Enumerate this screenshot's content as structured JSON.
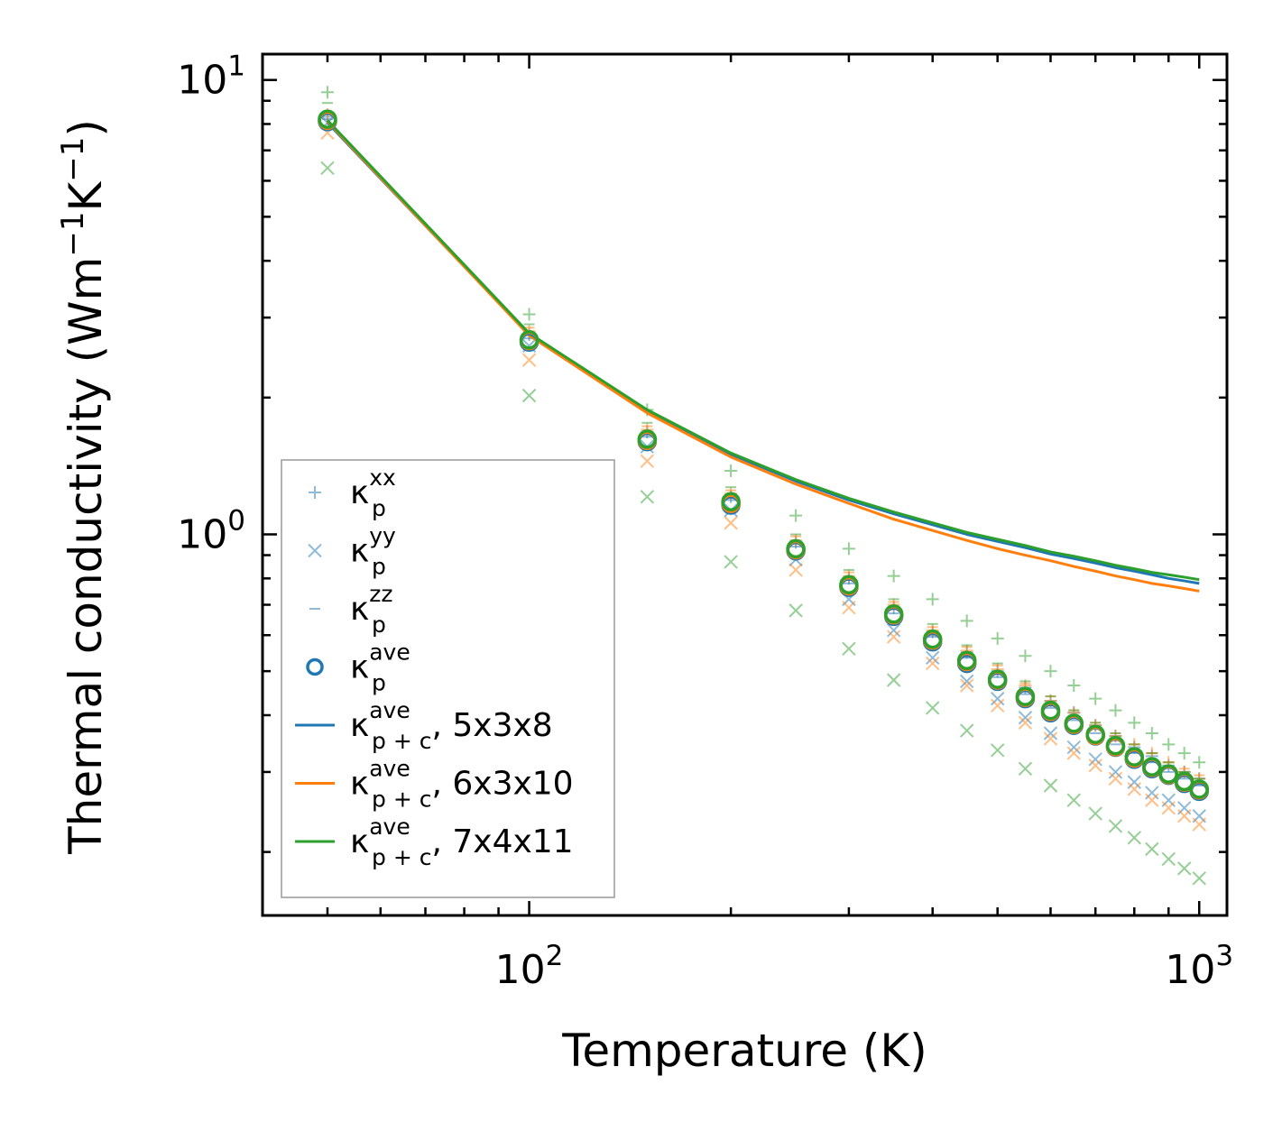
{
  "chart_data": {
    "type": "scatter",
    "scale": "log-log",
    "xlabel": "Temperature (K)",
    "ylabel": {
      "main": "Thermal conductivity (Wm",
      "exp1": "−1",
      "mid": "K",
      "exp2": "−1",
      "tail": ")"
    },
    "xlim": [
      40,
      1100
    ],
    "ylim": [
      0.145,
      11.4
    ],
    "xticks": [
      {
        "value": 100,
        "base": "10",
        "exp": "2"
      },
      {
        "value": 1000,
        "base": "10",
        "exp": "3"
      }
    ],
    "yticks": [
      {
        "value": 1,
        "base": "10",
        "exp": "0"
      },
      {
        "value": 10,
        "base": "10",
        "exp": "1"
      }
    ],
    "grid": false,
    "legend_position": "lower-left",
    "colors": {
      "blue": "#1f77b4",
      "orange": "#ff7f0e",
      "green": "#2ca02c"
    },
    "temperatures": [
      50,
      100,
      150,
      200,
      250,
      300,
      350,
      400,
      450,
      500,
      550,
      600,
      650,
      700,
      750,
      800,
      850,
      900,
      950,
      1000
    ],
    "scatter_series": [
      {
        "name": "5x3x8",
        "color": "#1f77b4",
        "kxx": [
          8.3,
          2.75,
          1.68,
          1.21,
          0.96,
          0.8,
          0.69,
          0.61,
          0.55,
          0.5,
          0.46,
          0.43,
          0.405,
          0.38,
          0.36,
          0.34,
          0.325,
          0.31,
          0.3,
          0.29
        ],
        "kyy": [
          8.05,
          2.6,
          1.56,
          1.13,
          0.88,
          0.72,
          0.615,
          0.535,
          0.475,
          0.435,
          0.395,
          0.365,
          0.34,
          0.32,
          0.3,
          0.285,
          0.27,
          0.26,
          0.25,
          0.24
        ],
        "kzz": [
          8.2,
          2.7,
          1.64,
          1.19,
          0.94,
          0.78,
          0.67,
          0.595,
          0.535,
          0.485,
          0.445,
          0.415,
          0.39,
          0.365,
          0.345,
          0.33,
          0.315,
          0.3,
          0.29,
          0.28
        ],
        "kave": [
          8.1,
          2.65,
          1.6,
          1.16,
          0.92,
          0.765,
          0.66,
          0.58,
          0.52,
          0.475,
          0.435,
          0.405,
          0.38,
          0.36,
          0.34,
          0.32,
          0.305,
          0.295,
          0.283,
          0.272
        ]
      },
      {
        "name": "6x3x10",
        "color": "#ff7f0e",
        "kxx": [
          8.4,
          2.8,
          1.7,
          1.23,
          0.97,
          0.81,
          0.7,
          0.615,
          0.555,
          0.505,
          0.465,
          0.43,
          0.405,
          0.38,
          0.36,
          0.345,
          0.33,
          0.315,
          0.3,
          0.29
        ],
        "kyy": [
          7.65,
          2.42,
          1.45,
          1.06,
          0.835,
          0.69,
          0.595,
          0.52,
          0.465,
          0.42,
          0.385,
          0.355,
          0.33,
          0.31,
          0.29,
          0.275,
          0.26,
          0.25,
          0.24,
          0.23
        ],
        "kzz": [
          8.5,
          2.85,
          1.73,
          1.25,
          0.99,
          0.825,
          0.71,
          0.625,
          0.565,
          0.515,
          0.47,
          0.44,
          0.41,
          0.385,
          0.365,
          0.345,
          0.33,
          0.315,
          0.305,
          0.295
        ],
        "kave": [
          8.15,
          2.67,
          1.61,
          1.17,
          0.925,
          0.77,
          0.665,
          0.585,
          0.525,
          0.478,
          0.438,
          0.408,
          0.382,
          0.361,
          0.341,
          0.322,
          0.307,
          0.296,
          0.285,
          0.274
        ]
      },
      {
        "name": "7x4x11",
        "color": "#2ca02c",
        "kxx": [
          9.4,
          3.05,
          1.88,
          1.38,
          1.1,
          0.93,
          0.81,
          0.72,
          0.645,
          0.59,
          0.54,
          0.5,
          0.465,
          0.435,
          0.41,
          0.385,
          0.365,
          0.345,
          0.33,
          0.315
        ],
        "kyy": [
          6.4,
          2.02,
          1.21,
          0.87,
          0.68,
          0.56,
          0.478,
          0.415,
          0.37,
          0.335,
          0.305,
          0.28,
          0.26,
          0.243,
          0.228,
          0.215,
          0.203,
          0.193,
          0.184,
          0.175
        ],
        "kzz": [
          8.9,
          2.9,
          1.76,
          1.27,
          1.0,
          0.835,
          0.72,
          0.635,
          0.57,
          0.52,
          0.475,
          0.44,
          0.41,
          0.385,
          0.365,
          0.345,
          0.33,
          0.315,
          0.3,
          0.29
        ],
        "kave": [
          8.2,
          2.68,
          1.62,
          1.18,
          0.93,
          0.775,
          0.668,
          0.588,
          0.528,
          0.48,
          0.44,
          0.41,
          0.384,
          0.363,
          0.343,
          0.324,
          0.308,
          0.297,
          0.286,
          0.275
        ]
      }
    ],
    "line_series": [
      {
        "name": "κ p+c ave, 5x3x8",
        "color": "#1f77b4",
        "values": [
          8.05,
          2.75,
          1.87,
          1.5,
          1.31,
          1.19,
          1.11,
          1.05,
          1.0,
          0.965,
          0.935,
          0.905,
          0.885,
          0.865,
          0.845,
          0.83,
          0.815,
          0.8,
          0.79,
          0.78
        ]
      },
      {
        "name": "κ p+c ave, 6x3x10",
        "color": "#ff7f0e",
        "values": [
          8.1,
          2.74,
          1.85,
          1.48,
          1.29,
          1.17,
          1.08,
          1.02,
          0.97,
          0.93,
          0.9,
          0.875,
          0.85,
          0.83,
          0.81,
          0.795,
          0.78,
          0.77,
          0.76,
          0.75
        ]
      },
      {
        "name": "κ p+c ave, 7x4x11",
        "color": "#2ca02c",
        "values": [
          8.15,
          2.77,
          1.88,
          1.51,
          1.32,
          1.2,
          1.12,
          1.06,
          1.01,
          0.975,
          0.945,
          0.915,
          0.895,
          0.875,
          0.855,
          0.84,
          0.825,
          0.815,
          0.805,
          0.795
        ]
      }
    ],
    "legend": [
      {
        "marker": "plus",
        "color": "#1f77b4",
        "symbol": "κ",
        "sub": "p",
        "sup": "xx",
        "suffix": ""
      },
      {
        "marker": "x",
        "color": "#1f77b4",
        "symbol": "κ",
        "sub": "p",
        "sup": "yy",
        "suffix": ""
      },
      {
        "marker": "dash",
        "color": "#1f77b4",
        "symbol": "κ",
        "sub": "p",
        "sup": "zz",
        "suffix": ""
      },
      {
        "marker": "circle",
        "color": "#1f77b4",
        "symbol": "κ",
        "sub": "p",
        "sup": "ave",
        "suffix": ""
      },
      {
        "marker": "line",
        "color": "#1f77b4",
        "symbol": "κ",
        "sub": "p + c",
        "sup": "ave",
        "suffix": ", 5x3x8"
      },
      {
        "marker": "line",
        "color": "#ff7f0e",
        "symbol": "κ",
        "sub": "p + c",
        "sup": "ave",
        "suffix": ", 6x3x10"
      },
      {
        "marker": "line",
        "color": "#2ca02c",
        "symbol": "κ",
        "sub": "p + c",
        "sup": "ave",
        "suffix": ", 7x4x11"
      }
    ]
  }
}
